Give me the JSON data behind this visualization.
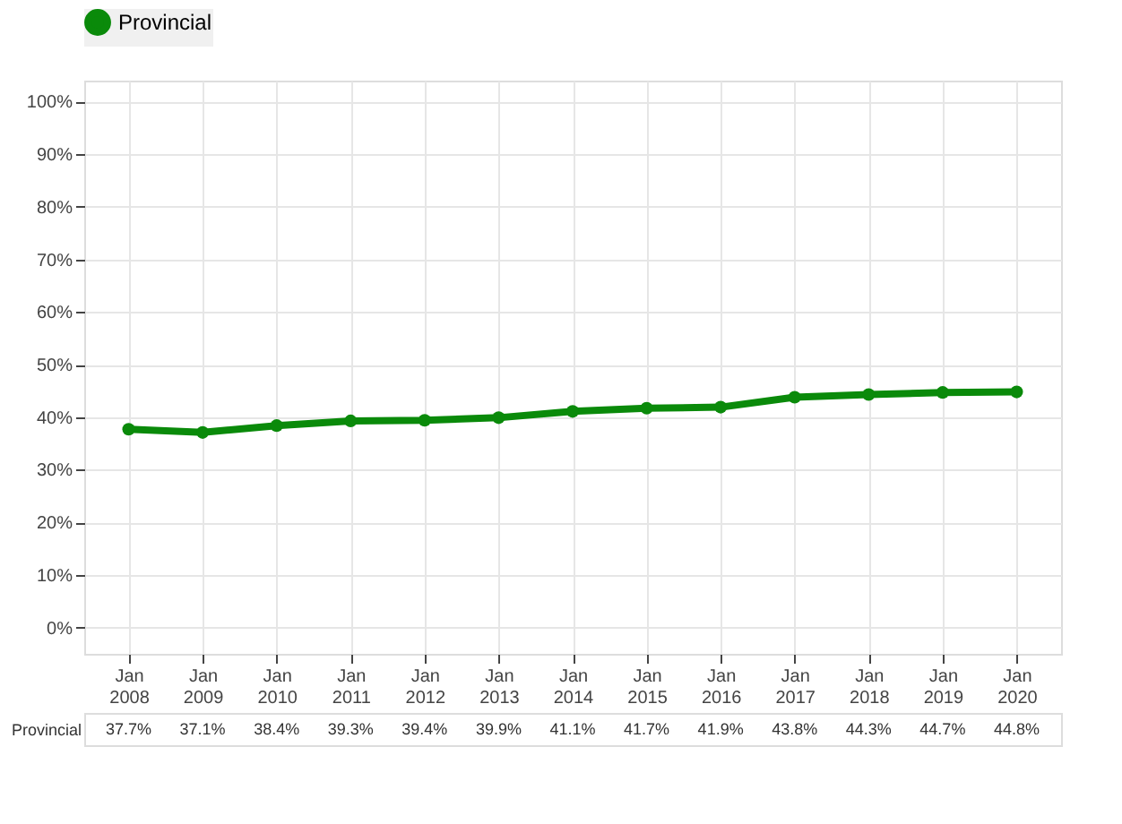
{
  "chart_data": {
    "type": "line",
    "categories": [
      "Jan 2008",
      "Jan 2009",
      "Jan 2010",
      "Jan 2011",
      "Jan 2012",
      "Jan 2013",
      "Jan 2014",
      "Jan 2015",
      "Jan 2016",
      "Jan 2017",
      "Jan 2018",
      "Jan 2019",
      "Jan 2020"
    ],
    "series": [
      {
        "name": "Provincial",
        "color": "#0a8a0a",
        "values": [
          37.7,
          37.1,
          38.4,
          39.3,
          39.4,
          39.9,
          41.1,
          41.7,
          41.9,
          43.8,
          44.3,
          44.7,
          44.8
        ],
        "value_labels": [
          "37.7%",
          "37.1%",
          "38.4%",
          "39.3%",
          "39.4%",
          "39.9%",
          "41.1%",
          "41.7%",
          "41.9%",
          "43.8%",
          "44.3%",
          "44.7%",
          "44.8%"
        ]
      }
    ],
    "ylim": [
      -5,
      104
    ],
    "yticks": [
      {
        "value": 0,
        "label": "0%"
      },
      {
        "value": 10,
        "label": "10%"
      },
      {
        "value": 20,
        "label": "20%"
      },
      {
        "value": 30,
        "label": "30%"
      },
      {
        "value": 40,
        "label": "40%"
      },
      {
        "value": 50,
        "label": "50%"
      },
      {
        "value": 60,
        "label": "60%"
      },
      {
        "value": 70,
        "label": "70%"
      },
      {
        "value": 80,
        "label": "80%"
      },
      {
        "value": 90,
        "label": "90%"
      },
      {
        "value": 100,
        "label": "100%"
      }
    ],
    "grid": true,
    "legend": "top",
    "marker": "circle",
    "line_style": "solid"
  }
}
